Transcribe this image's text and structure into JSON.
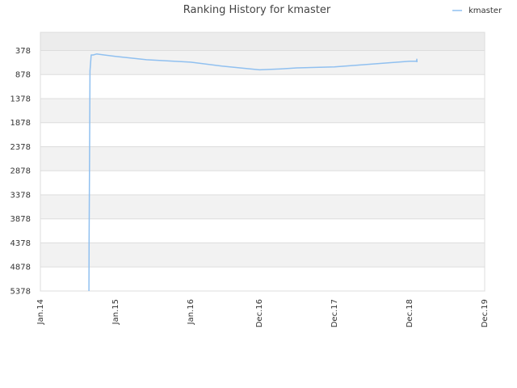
{
  "chart_data": {
    "type": "line",
    "title": "Ranking History for kmaster",
    "xlabel": "",
    "ylabel": "",
    "x_axis": {
      "type": "date",
      "range": [
        "2014-01-01",
        "2019-12-01"
      ],
      "ticks": [
        {
          "label": "Jan.14",
          "date": "2014-01-01"
        },
        {
          "label": "Jan.15",
          "date": "2015-01-01"
        },
        {
          "label": "Jan.16",
          "date": "2016-01-01"
        },
        {
          "label": "Dec.16",
          "date": "2016-12-01"
        },
        {
          "label": "Dec.17",
          "date": "2017-12-01"
        },
        {
          "label": "Dec.18",
          "date": "2018-12-01"
        },
        {
          "label": "Dec.19",
          "date": "2019-12-01"
        }
      ]
    },
    "y_axis": {
      "inverted": true,
      "range": [
        5378,
        0
      ],
      "ticks": [
        378,
        878,
        1378,
        1878,
        2378,
        2878,
        3378,
        3878,
        4378,
        4878,
        5378
      ]
    },
    "grid": true,
    "legend": {
      "position": "top-right",
      "entries": [
        "kmaster"
      ]
    },
    "colors": {
      "series": "#90c0f0",
      "band_alt": "#f2f2f2",
      "band_top": "#ececec",
      "grid_line": "#dddddd"
    },
    "series": [
      {
        "name": "kmaster",
        "x": [
          "2014-08-25",
          "2014-08-26",
          "2014-08-28",
          "2014-08-30",
          "2014-09-05",
          "2014-09-15",
          "2014-10-01",
          "2015-01-01",
          "2015-06-01",
          "2016-01-01",
          "2016-06-01",
          "2016-12-01",
          "2017-03-15",
          "2017-06-01",
          "2017-12-01",
          "2018-06-01",
          "2018-12-01",
          "2019-01-04",
          "2019-01-05",
          "2019-01-06"
        ],
        "values": [
          5378,
          4300,
          2500,
          800,
          470,
          470,
          450,
          500,
          570,
          620,
          700,
          780,
          760,
          740,
          720,
          660,
          600,
          600,
          560,
          620
        ]
      }
    ]
  }
}
